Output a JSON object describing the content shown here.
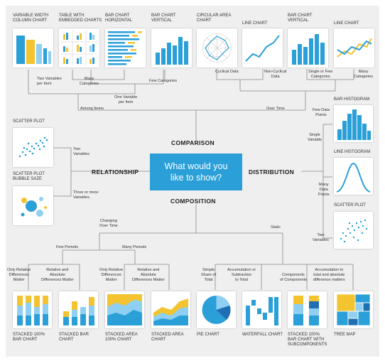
{
  "center_question": "What would you\nlike to show?",
  "categories": {
    "comparison": "COMPARISON",
    "relationship": "RELATIONSHIP",
    "distribution": "DISTRIBUTION",
    "composition": "COMPOSITION"
  },
  "charts": {
    "variable_width_column": "VARIABLE WIDTH\nCOLUMN CHART",
    "table_embedded": "TABLE WITH\nEMBEDDED CHARTS",
    "bar_horizontal": "BAR CHART\nHORIZONTAL",
    "bar_vertical_1": "BAR CHART\nVERTICAL",
    "circular_area": "CIRCULAR AREA\nCHART",
    "line_chart_1": "LINE CHART",
    "bar_vertical_2": "BAR CHART\nVERTICAL",
    "line_chart_2": "LINE CHART",
    "scatter_plot": "SCATTER PLOT",
    "scatter_bubble": "SCATTER PLOT\nBUBBLE SAZE",
    "bar_histogram": "BAR HISTOGRAM",
    "line_histogram": "LINE HISTOGRAM",
    "scatter_plot_2": "SCATTER PLOT",
    "stacked_100_bar": "STACKED 100%\nBAR CHART",
    "stacked_bar": "STACKED BAR\nCHART",
    "stacked_area_100": "STACKED AREA\n100% CHART",
    "stacked_area": "STACKED AREA\nCHART",
    "pie_chart": "PIE CHART",
    "waterfall": "WATERFALL CHART",
    "stacked_100_sub": "STACKED 100%\nBAR CHART WITH\nSUBCOMPONENTS",
    "tree_map": "TREE MAP"
  },
  "conditions": {
    "two_vars_per_item": "Two Variables\nper Item",
    "many_categories_1": "Many\nCategories",
    "one_var_per_item": "One Variable\nper Item",
    "few_categories": "Few Categories",
    "among_items": "Among Items",
    "cyclical": "Cyclical Data",
    "non_cyclical": "Non-Cyclical\nData",
    "single_or_few": "Single or Few\nCategories",
    "many_categories_2": "Many\nCategories",
    "over_time": "Over Time",
    "two_variables": "Two\nVariables",
    "three_or_more": "Three or more\nVariables",
    "few_data_points": "Few Data\nPoints",
    "single_variable": "Single\nVariable",
    "many_data_points": "Many\nData\nPoints",
    "dist_two_variables": "Two\nVariables",
    "changing_over_time": "Changing\nOver Time",
    "static": "Static",
    "few_periods": "Few Periods",
    "many_periods": "Many Periods",
    "only_relative_1": "Only Relative\nDifferences\nMatter",
    "relative_absolute_1": "Relative and\nAbsolute\nDifferences Matter",
    "only_relative_2": "Only Relative\nDifferences\nMatter",
    "relative_absolute_2": "Relative and\nAbsolute\nDifferences Matter",
    "simple_share": "Simple\nShare of\nTotal",
    "accumulation_subtraction": "Accumulation or\nSubtraction\nto Total",
    "components_of_components": "Components\nof Components",
    "accumulation_total": "Accumulation to\ntotal and absolute\ndifference matters"
  },
  "colors": {
    "primary": "#2a9fd8",
    "dark_blue": "#1f6fb2",
    "light_blue": "#8fd0f2",
    "yellow": "#f4c430",
    "background": "#efeff0",
    "line": "#888888"
  }
}
